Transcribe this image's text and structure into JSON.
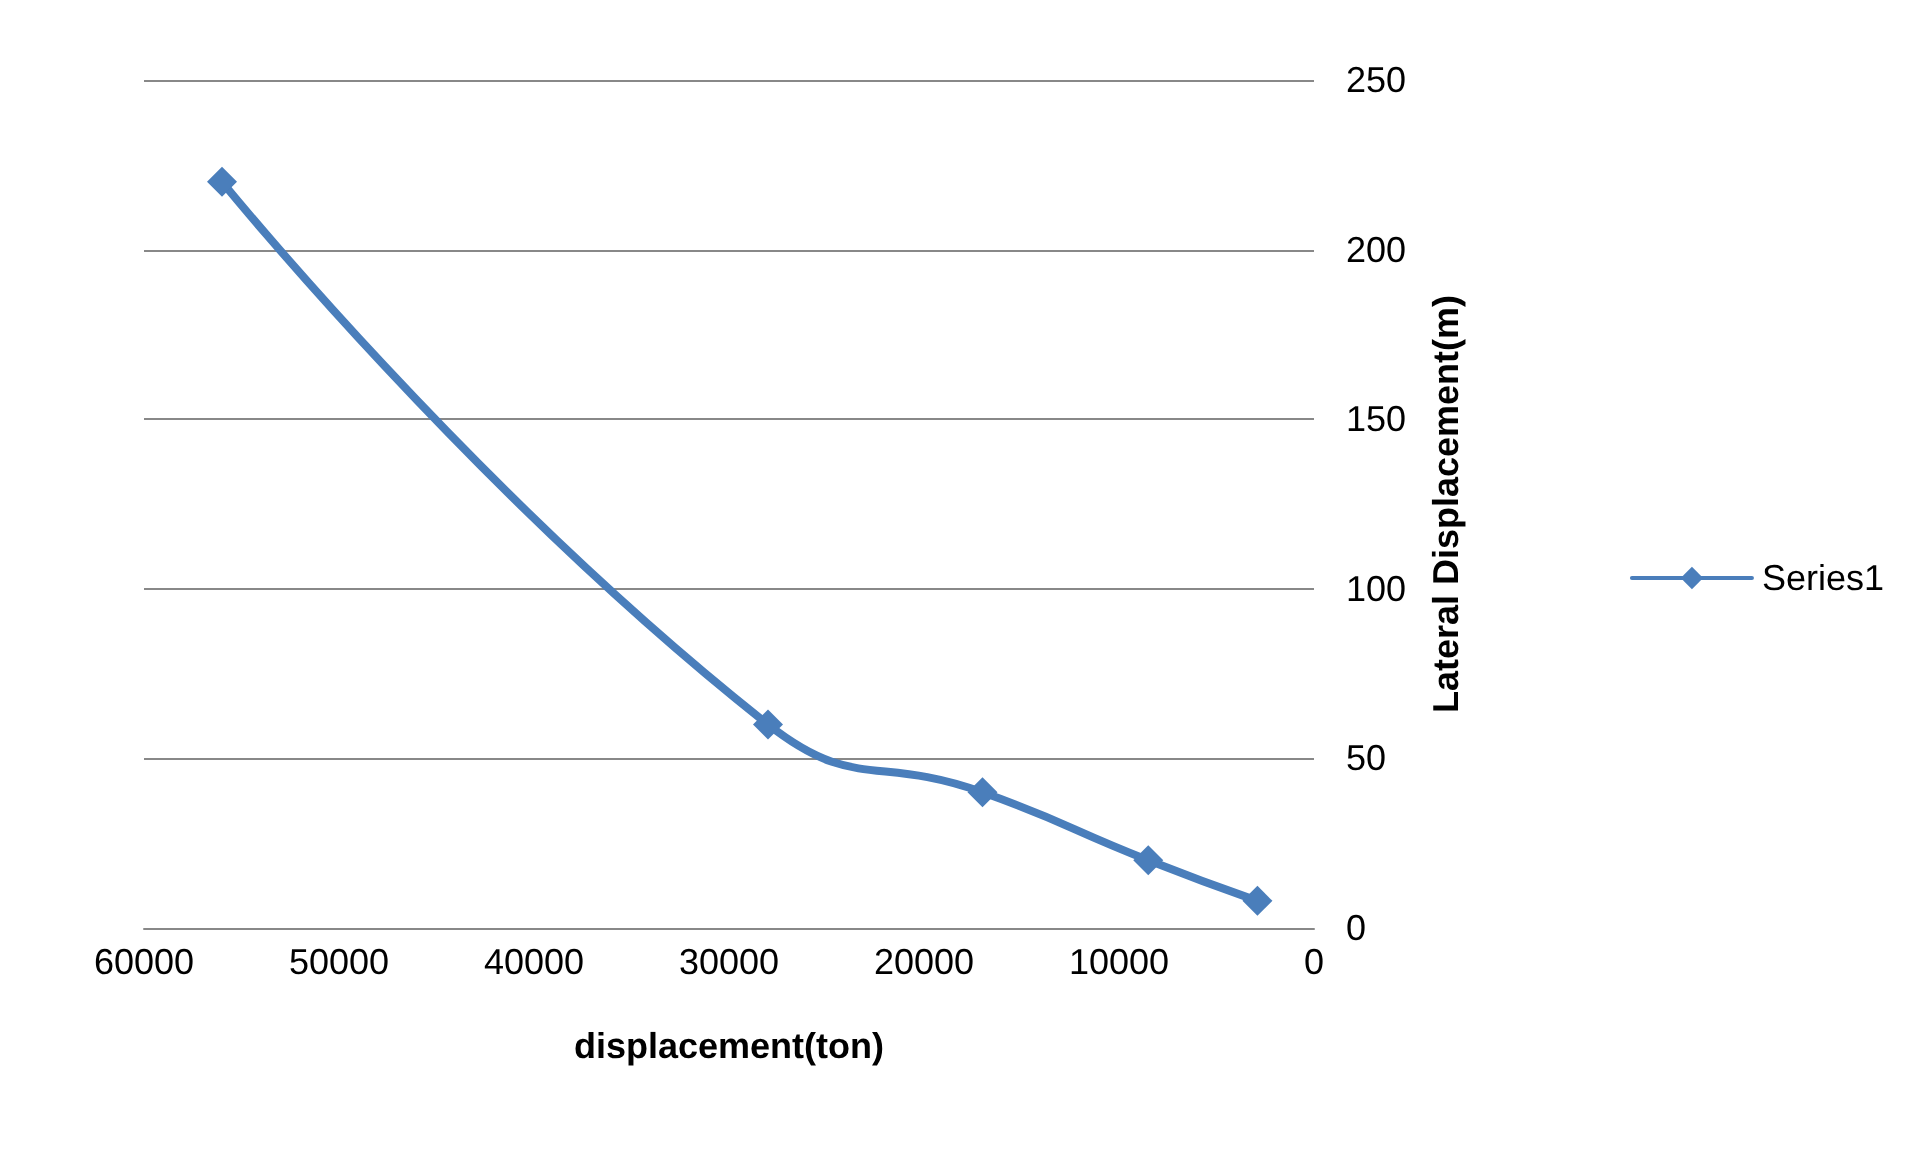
{
  "chart_data": {
    "type": "line",
    "xlabel": "displacement(ton)",
    "y2label": "Lateral Displacement(m)",
    "x": [
      56000,
      28000,
      17000,
      8500,
      2900
    ],
    "series": [
      {
        "name": "Series1",
        "color": "#4a7ebb",
        "values": [
          220,
          60,
          40,
          20,
          8
        ],
        "axis": "y2"
      }
    ],
    "xlim": [
      60000,
      0
    ],
    "xticks": [
      60000,
      50000,
      40000,
      30000,
      20000,
      10000,
      0
    ],
    "y2lim": [
      0,
      250
    ],
    "y2ticks": [
      0,
      50,
      100,
      150,
      200,
      250
    ],
    "grid": "y",
    "legend": "right",
    "marker": "diamond",
    "line_style": "solid"
  }
}
